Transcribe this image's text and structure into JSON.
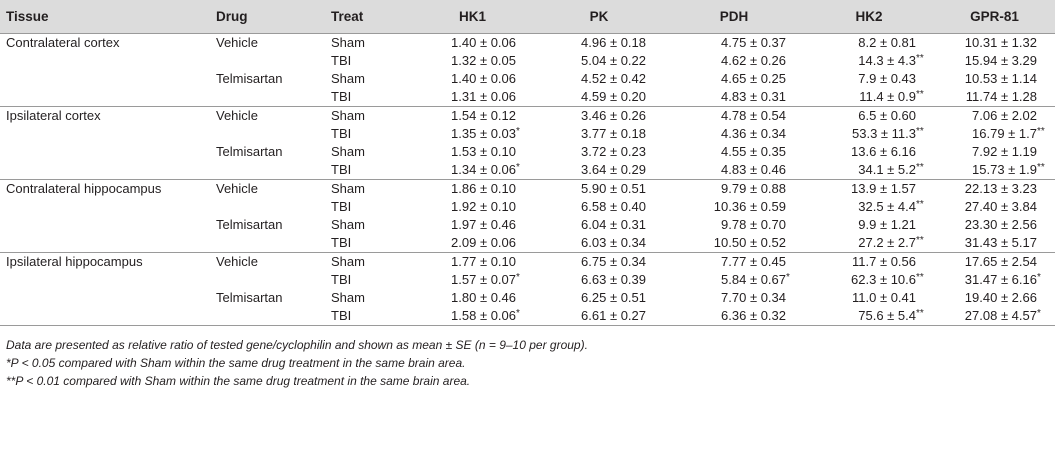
{
  "headers": [
    "Tissue",
    "Drug",
    "Treat",
    "HK1",
    "PK",
    "PDH",
    "HK2",
    "GPR-81"
  ],
  "groups": [
    {
      "tissue": "Contralateral cortex",
      "rows": [
        {
          "drug": "Vehicle",
          "treat": "Sham",
          "vals": [
            [
              "1.40 ± 0.06",
              ""
            ],
            [
              "4.96 ± 0.18",
              ""
            ],
            [
              "4.75 ± 0.37",
              ""
            ],
            [
              "8.2 ± 0.81",
              ""
            ],
            [
              "10.31 ± 1.32",
              ""
            ]
          ]
        },
        {
          "drug": "",
          "treat": "TBI",
          "vals": [
            [
              "1.32 ± 0.05",
              ""
            ],
            [
              "5.04 ± 0.22",
              ""
            ],
            [
              "4.62 ± 0.26",
              ""
            ],
            [
              "14.3 ± 4.3",
              "**"
            ],
            [
              "15.94 ± 3.29",
              ""
            ]
          ]
        },
        {
          "drug": "Telmisartan",
          "treat": "Sham",
          "vals": [
            [
              "1.40 ± 0.06",
              ""
            ],
            [
              "4.52 ± 0.42",
              ""
            ],
            [
              "4.65 ± 0.25",
              ""
            ],
            [
              "7.9 ± 0.43",
              ""
            ],
            [
              "10.53 ± 1.14",
              ""
            ]
          ]
        },
        {
          "drug": "",
          "treat": "TBI",
          "vals": [
            [
              "1.31 ± 0.06",
              ""
            ],
            [
              "4.59 ± 0.20",
              ""
            ],
            [
              "4.83 ± 0.31",
              ""
            ],
            [
              "11.4 ± 0.9",
              "**"
            ],
            [
              "11.74 ± 1.28",
              ""
            ]
          ]
        }
      ]
    },
    {
      "tissue": "Ipsilateral cortex",
      "rows": [
        {
          "drug": "Vehicle",
          "treat": "Sham",
          "vals": [
            [
              "1.54 ± 0.12",
              ""
            ],
            [
              "3.46 ± 0.26",
              ""
            ],
            [
              "4.78 ± 0.54",
              ""
            ],
            [
              "6.5 ± 0.60",
              ""
            ],
            [
              "7.06 ± 2.02",
              ""
            ]
          ]
        },
        {
          "drug": "",
          "treat": "TBI",
          "vals": [
            [
              "1.35 ± 0.03",
              "*"
            ],
            [
              "3.77 ± 0.18",
              ""
            ],
            [
              "4.36 ± 0.34",
              ""
            ],
            [
              "53.3 ± 11.3",
              "**"
            ],
            [
              "16.79 ± 1.7",
              "**"
            ]
          ]
        },
        {
          "drug": "Telmisartan",
          "treat": "Sham",
          "vals": [
            [
              "1.53 ± 0.10",
              ""
            ],
            [
              "3.72 ± 0.23",
              ""
            ],
            [
              "4.55 ± 0.35",
              ""
            ],
            [
              "13.6 ± 6.16",
              ""
            ],
            [
              "7.92 ± 1.19",
              ""
            ]
          ]
        },
        {
          "drug": "",
          "treat": "TBI",
          "vals": [
            [
              "1.34 ± 0.06",
              "*"
            ],
            [
              "3.64 ± 0.29",
              ""
            ],
            [
              "4.83 ± 0.46",
              ""
            ],
            [
              "34.1 ± 5.2",
              "**"
            ],
            [
              "15.73 ± 1.9",
              "**"
            ]
          ]
        }
      ]
    },
    {
      "tissue": "Contralateral hippocampus",
      "rows": [
        {
          "drug": "Vehicle",
          "treat": "Sham",
          "vals": [
            [
              "1.86 ± 0.10",
              ""
            ],
            [
              "5.90 ± 0.51",
              ""
            ],
            [
              "9.79 ± 0.88",
              ""
            ],
            [
              "13.9 ± 1.57",
              ""
            ],
            [
              "22.13 ± 3.23",
              ""
            ]
          ]
        },
        {
          "drug": "",
          "treat": "TBI",
          "vals": [
            [
              "1.92 ± 0.10",
              ""
            ],
            [
              "6.58 ± 0.40",
              ""
            ],
            [
              "10.36 ± 0.59",
              ""
            ],
            [
              "32.5 ± 4.4",
              "**"
            ],
            [
              "27.40 ± 3.84",
              ""
            ]
          ]
        },
        {
          "drug": "Telmisartan",
          "treat": "Sham",
          "vals": [
            [
              "1.97 ± 0.46",
              ""
            ],
            [
              "6.04 ± 0.31",
              ""
            ],
            [
              "9.78 ± 0.70",
              ""
            ],
            [
              "9.9 ± 1.21",
              ""
            ],
            [
              "23.30 ± 2.56",
              ""
            ]
          ]
        },
        {
          "drug": "",
          "treat": "TBI",
          "vals": [
            [
              "2.09 ± 0.06",
              ""
            ],
            [
              "6.03 ± 0.34",
              ""
            ],
            [
              "10.50 ± 0.52",
              ""
            ],
            [
              "27.2 ± 2.7",
              "**"
            ],
            [
              "31.43 ± 5.17",
              ""
            ]
          ]
        }
      ]
    },
    {
      "tissue": "Ipsilateral hippocampus",
      "rows": [
        {
          "drug": "Vehicle",
          "treat": "Sham",
          "vals": [
            [
              "1.77 ± 0.10",
              ""
            ],
            [
              "6.75 ± 0.34",
              ""
            ],
            [
              "7.77 ± 0.45",
              ""
            ],
            [
              "11.7 ± 0.56",
              ""
            ],
            [
              "17.65 ± 2.54",
              ""
            ]
          ]
        },
        {
          "drug": "",
          "treat": "TBI",
          "vals": [
            [
              "1.57 ± 0.07",
              "*"
            ],
            [
              "6.63 ± 0.39",
              ""
            ],
            [
              "5.84 ± 0.67",
              "*"
            ],
            [
              "62.3 ± 10.6",
              "**"
            ],
            [
              "31.47 ± 6.16",
              "*"
            ]
          ]
        },
        {
          "drug": "Telmisartan",
          "treat": "Sham",
          "vals": [
            [
              "1.80 ± 0.46",
              ""
            ],
            [
              "6.25 ± 0.51",
              ""
            ],
            [
              "7.70 ± 0.34",
              ""
            ],
            [
              "11.0 ± 0.41",
              ""
            ],
            [
              "19.40 ± 2.66",
              ""
            ]
          ]
        },
        {
          "drug": "",
          "treat": "TBI",
          "vals": [
            [
              "1.58 ± 0.06",
              "*"
            ],
            [
              "6.61 ± 0.27",
              ""
            ],
            [
              "6.36 ± 0.32",
              ""
            ],
            [
              "75.6 ± 5.4",
              "**"
            ],
            [
              "27.08 ± 4.57",
              "*"
            ]
          ]
        }
      ]
    }
  ],
  "footnotes": [
    "Data are presented as relative ratio of tested gene/cyclophilin and shown as mean ± SE (n = 9–10 per group).",
    "*P < 0.05 compared with Sham within the same drug treatment in the same brain area.",
    "**P < 0.01 compared with Sham within the same drug treatment in the same brain area."
  ]
}
